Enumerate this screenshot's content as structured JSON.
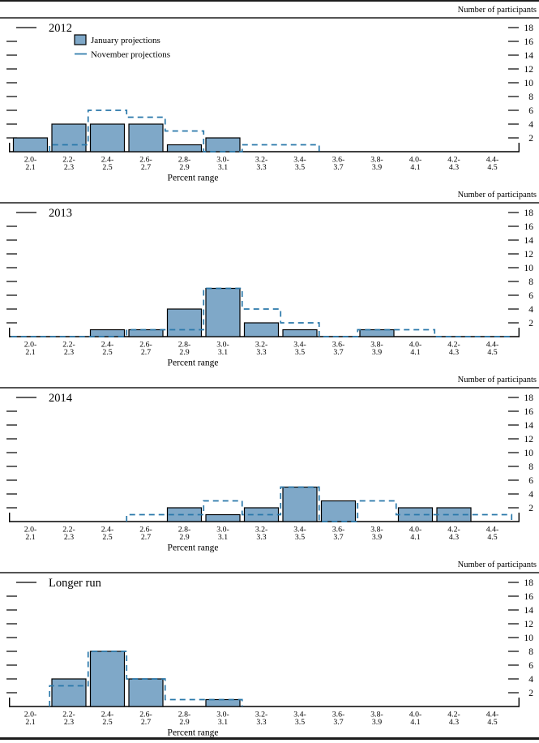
{
  "figure": {
    "right_axis_title": "Number of participants",
    "x_axis_title": "Percent range",
    "colors": {
      "bar_fill": "#7fa8c8",
      "bar_border": "#000000",
      "november_line": "#2a78aa",
      "rule": "#1c1c1c"
    }
  },
  "legend": {
    "january_label": "January projections",
    "november_label": "November projections"
  },
  "chart_data": {
    "type": "bar",
    "categories": [
      "2.0-2.1",
      "2.2-2.3",
      "2.4-2.5",
      "2.6-2.7",
      "2.8-2.9",
      "3.0-3.1",
      "3.2-3.3",
      "3.4-3.5",
      "3.6-3.7",
      "3.8-3.9",
      "4.0-4.1",
      "4.2-4.3",
      "4.4-4.5"
    ],
    "xlabel": "Percent range",
    "ylabel_right": "Number of participants",
    "ylim": [
      0,
      19
    ],
    "yticks": [
      2,
      4,
      6,
      8,
      10,
      12,
      14,
      16,
      18
    ],
    "legend": [
      "January projections",
      "November projections"
    ],
    "legend_position": "top-left-first-panel-only",
    "grid": false,
    "panels": [
      {
        "title": "2012",
        "show_legend": true,
        "series": [
          {
            "name": "January projections",
            "style": "bar",
            "values": [
              2,
              4,
              4,
              4,
              1,
              2,
              0,
              0,
              0,
              0,
              0,
              0,
              0
            ]
          },
          {
            "name": "November projections",
            "style": "dashed-step",
            "values": [
              0,
              1,
              6,
              5,
              3,
              0,
              1,
              1,
              0,
              0,
              0,
              0,
              0
            ],
            "drawn_boundary_span": [
              1,
              8
            ]
          }
        ]
      },
      {
        "title": "2013",
        "show_legend": false,
        "series": [
          {
            "name": "January projections",
            "style": "bar",
            "values": [
              0,
              0,
              1,
              1,
              4,
              7,
              2,
              1,
              0,
              1,
              0,
              0,
              0
            ]
          },
          {
            "name": "November projections",
            "style": "dashed-step",
            "values": [
              0,
              0,
              0,
              1,
              1,
              7,
              4,
              2,
              0,
              1,
              1,
              0,
              0
            ],
            "drawn_boundary_span": [
              0,
              13
            ]
          }
        ]
      },
      {
        "title": "2014",
        "show_legend": false,
        "series": [
          {
            "name": "January projections",
            "style": "bar",
            "values": [
              0,
              0,
              0,
              0,
              2,
              1,
              2,
              5,
              3,
              0,
              2,
              2,
              0
            ]
          },
          {
            "name": "November projections",
            "style": "dashed-step",
            "values": [
              0,
              0,
              0,
              1,
              1,
              3,
              1,
              5,
              0,
              3,
              1,
              1,
              1
            ],
            "drawn_boundary_span": [
              3,
              13
            ]
          }
        ]
      },
      {
        "title": "Longer run",
        "show_legend": false,
        "series": [
          {
            "name": "January projections",
            "style": "bar",
            "values": [
              0,
              4,
              8,
              4,
              0,
              1,
              0,
              0,
              0,
              0,
              0,
              0,
              0
            ]
          },
          {
            "name": "November projections",
            "style": "dashed-step",
            "values": [
              0,
              3,
              8,
              4,
              1,
              1,
              0,
              0,
              0,
              0,
              0,
              0,
              0
            ],
            "drawn_boundary_span": [
              1,
              6
            ]
          }
        ]
      }
    ]
  }
}
